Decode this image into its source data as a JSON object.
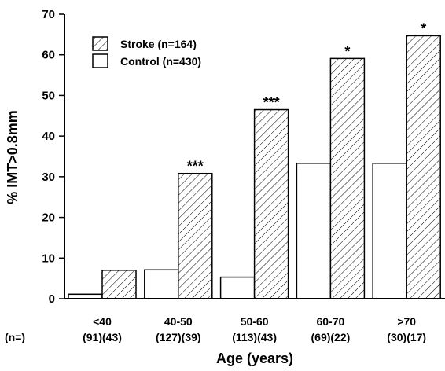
{
  "chart_data": {
    "type": "bar",
    "ylabel": "% IMT>0.8mm",
    "xlabel": "Age (years)",
    "ylim": [
      0,
      70
    ],
    "yticks": [
      0,
      10,
      20,
      30,
      40,
      50,
      60,
      70
    ],
    "grid": false,
    "legend_position": "top-left",
    "n_prefix": "(n=)",
    "categories": [
      {
        "label": "<40",
        "n": "(91)(43)"
      },
      {
        "label": "40-50",
        "n": "(127)(39)"
      },
      {
        "label": "50-60",
        "n": "(113)(43)"
      },
      {
        "label": "60-70",
        "n": "(69)(22)"
      },
      {
        "label": ">70",
        "n": "(30)(17)"
      }
    ],
    "series": [
      {
        "name": "Control (n=430)",
        "fill": "#ffffff",
        "pattern": "none",
        "values": [
          1.1,
          7.1,
          5.3,
          33.3,
          33.3
        ]
      },
      {
        "name": "Stroke (n=164)",
        "fill": "#ffffff",
        "pattern": "hatch",
        "values": [
          7.0,
          30.8,
          46.5,
          59.1,
          64.7
        ]
      }
    ],
    "significance": [
      "",
      "***",
      "***",
      "*",
      "*"
    ]
  }
}
